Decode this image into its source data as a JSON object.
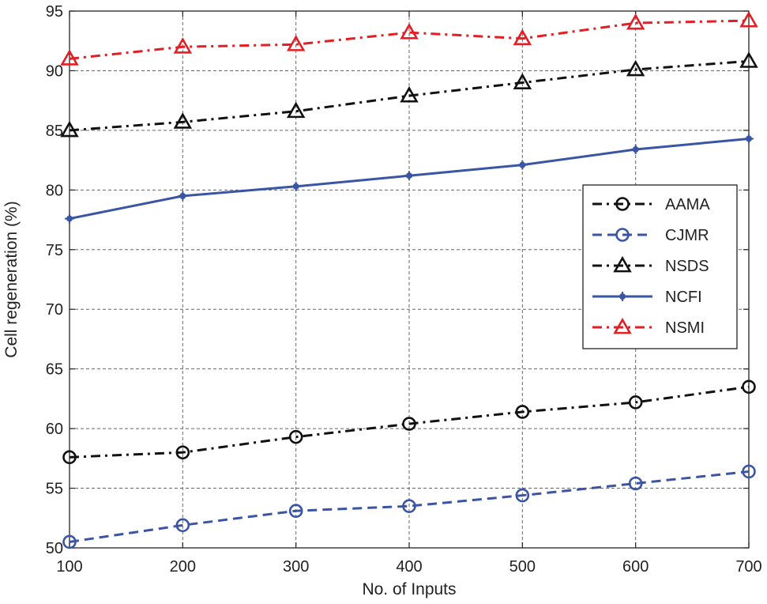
{
  "chart_data": {
    "type": "line",
    "title": "",
    "xlabel": "No. of Inputs",
    "ylabel": "Cell regeneration (%)",
    "x": [
      100,
      200,
      300,
      400,
      500,
      600,
      700
    ],
    "xlim": [
      100,
      700
    ],
    "ylim": [
      50,
      95
    ],
    "xticks": [
      "100",
      "200",
      "300",
      "400",
      "500",
      "600",
      "700"
    ],
    "yticks": [
      "50",
      "55",
      "60",
      "65",
      "70",
      "75",
      "80",
      "85",
      "90",
      "95"
    ],
    "grid": true,
    "legend_position": "right",
    "series": [
      {
        "name": "AAMA",
        "values": [
          57.6,
          58.0,
          59.3,
          60.4,
          61.4,
          62.2,
          63.5
        ],
        "color": "#111111",
        "dash": "dash-dot",
        "marker": "circle"
      },
      {
        "name": "CJMR",
        "values": [
          50.5,
          51.9,
          53.1,
          53.5,
          54.4,
          55.4,
          56.4
        ],
        "color": "#3a55a4",
        "dash": "dashed",
        "marker": "circle"
      },
      {
        "name": "NSDS",
        "values": [
          85.0,
          85.7,
          86.6,
          87.9,
          89.0,
          90.1,
          90.8
        ],
        "color": "#111111",
        "dash": "dash-dot",
        "marker": "triangle"
      },
      {
        "name": "NCFI",
        "values": [
          77.6,
          79.5,
          80.3,
          81.2,
          82.1,
          83.4,
          84.3
        ],
        "color": "#3a55a4",
        "dash": "solid",
        "marker": "plus-dot"
      },
      {
        "name": "NSMI",
        "values": [
          91.0,
          92.0,
          92.2,
          93.2,
          92.7,
          94.0,
          94.2
        ],
        "color": "#e31e24",
        "dash": "dash-dot",
        "marker": "triangle"
      }
    ]
  }
}
